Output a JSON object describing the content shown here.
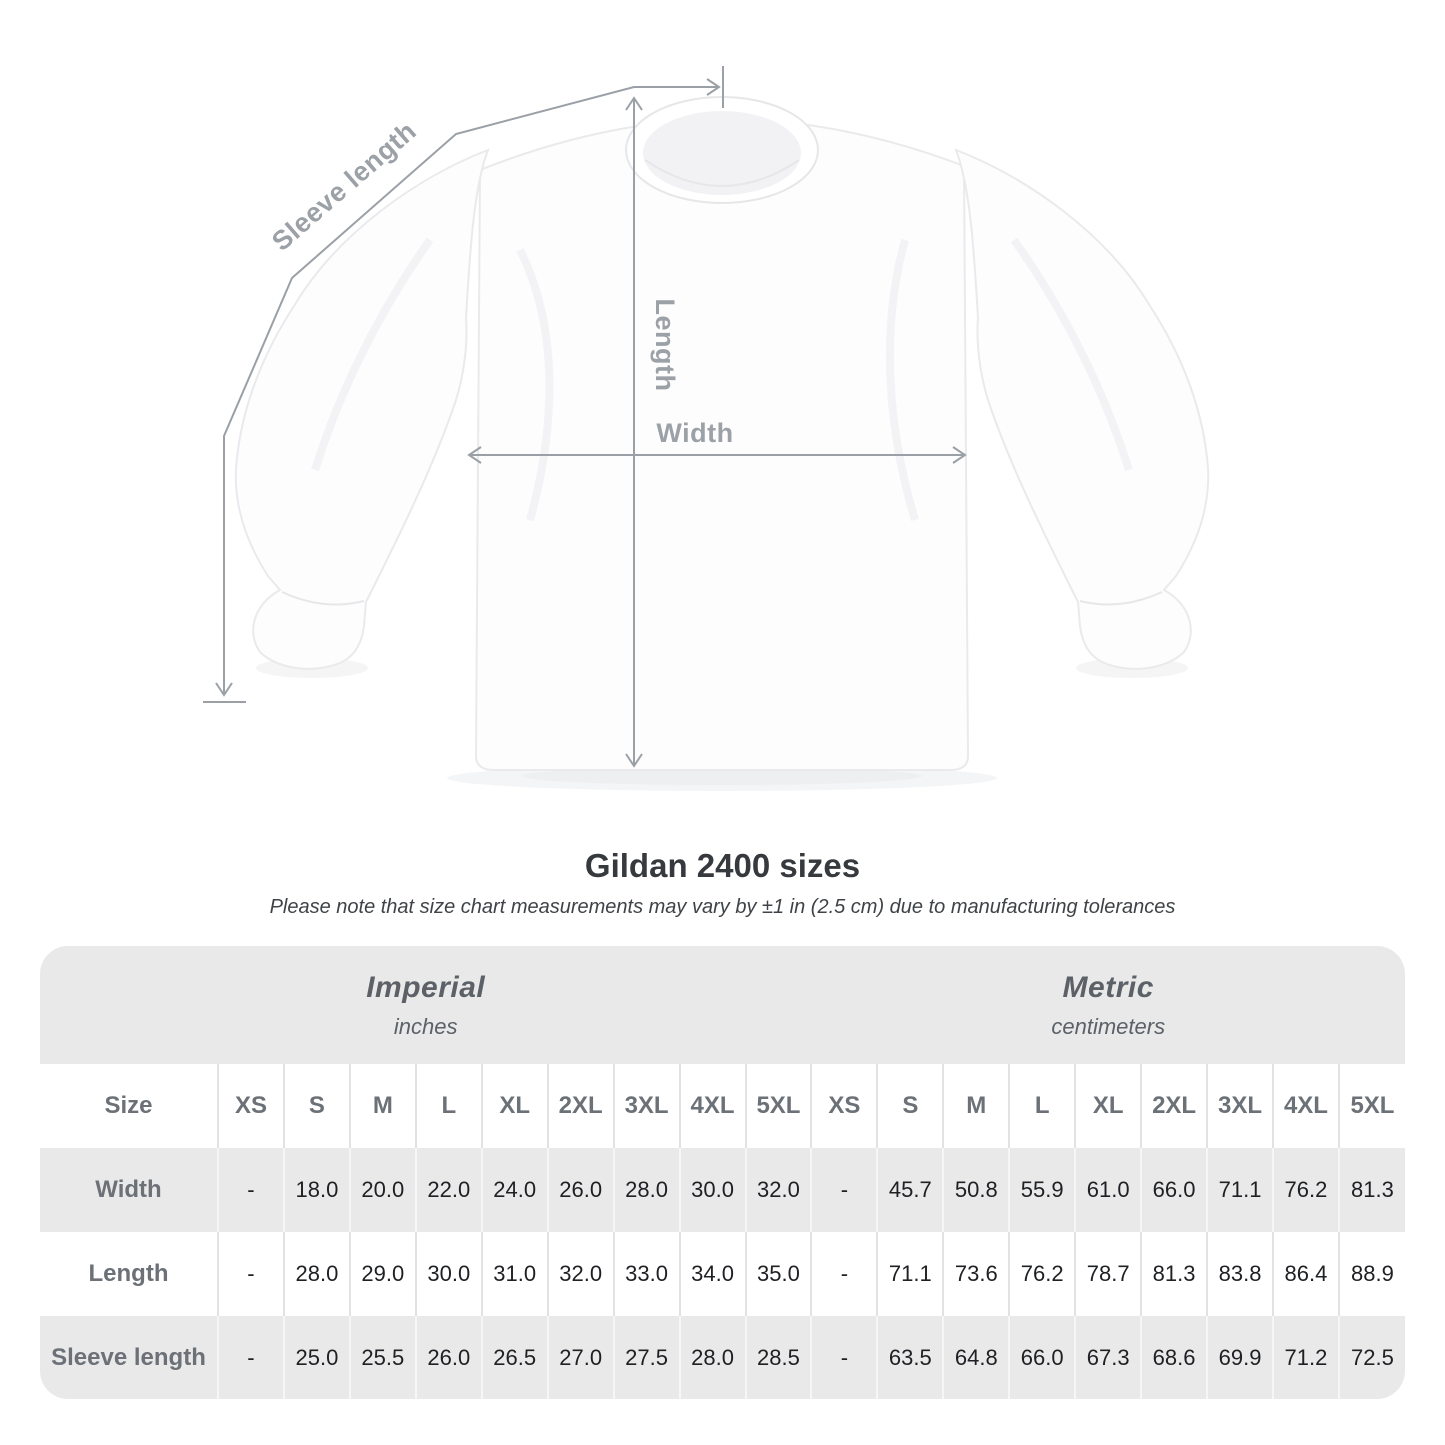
{
  "diagram": {
    "sleeve_length_label": "Sleeve length",
    "length_label": "Length",
    "width_label": "Width"
  },
  "heading": {
    "title": "Gildan 2400 sizes",
    "note": "Please note that size chart measurements may vary by ±1 in (2.5 cm) due to manufacturing tolerances"
  },
  "table": {
    "groups": [
      {
        "name": "Imperial",
        "unit": "inches"
      },
      {
        "name": "Metric",
        "unit": "centimeters"
      }
    ],
    "size_label": "Size",
    "sizes": [
      "XS",
      "S",
      "M",
      "L",
      "XL",
      "2XL",
      "3XL",
      "4XL",
      "5XL"
    ],
    "rows": [
      {
        "label": "Width",
        "imperial": [
          "-",
          "18.0",
          "20.0",
          "22.0",
          "24.0",
          "26.0",
          "28.0",
          "30.0",
          "32.0"
        ],
        "metric": [
          "-",
          "45.7",
          "50.8",
          "55.9",
          "61.0",
          "66.0",
          "71.1",
          "76.2",
          "81.3"
        ]
      },
      {
        "label": "Length",
        "imperial": [
          "-",
          "28.0",
          "29.0",
          "30.0",
          "31.0",
          "32.0",
          "33.0",
          "34.0",
          "35.0"
        ],
        "metric": [
          "-",
          "71.1",
          "73.6",
          "76.2",
          "78.7",
          "81.3",
          "83.8",
          "86.4",
          "88.9"
        ]
      },
      {
        "label": "Sleeve length",
        "imperial": [
          "-",
          "25.0",
          "25.5",
          "26.0",
          "26.5",
          "27.0",
          "27.5",
          "28.0",
          "28.5"
        ],
        "metric": [
          "-",
          "63.5",
          "64.8",
          "66.0",
          "67.3",
          "68.6",
          "69.9",
          "71.2",
          "72.5"
        ]
      }
    ]
  },
  "colors": {
    "band_gray": "#e9e9ea",
    "separator_on_white": "#e2e2e5",
    "separator_on_gray": "#f6f6f8",
    "header_text": "#6b7177",
    "group_text": "#5b6167",
    "value_text": "#1e2023",
    "title_text": "#36393d",
    "annotation": "#9aa0a5"
  }
}
